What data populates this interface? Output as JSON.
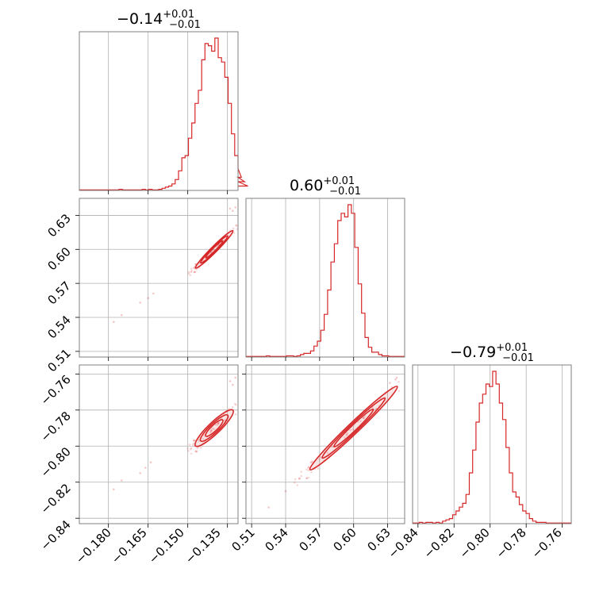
{
  "colors": {
    "series": "#d62728",
    "grid": "#b0b0b0",
    "frame": "#808080"
  },
  "chart_data": [
    {
      "type": "histogram",
      "panel": "diag-0",
      "title": {
        "value": "−0.14",
        "upper": "+0.01",
        "lower": "−0.01"
      },
      "xlim": [
        -0.191,
        -0.131
      ],
      "grid_x": [
        -0.18,
        -0.165,
        -0.15,
        -0.135
      ],
      "bin_edges_start": -0.191,
      "bin_width": 0.00125,
      "counts": [
        0.5,
        0.5,
        0.5,
        0.5,
        0.5,
        0.5,
        0.5,
        0.5,
        0.5,
        0.5,
        0.5,
        0.5,
        1,
        0.5,
        0.5,
        0.5,
        0.5,
        0.5,
        0.5,
        1,
        0.5,
        1,
        0.5,
        0.5,
        1,
        2,
        3,
        4,
        6,
        10,
        18,
        30,
        32,
        48,
        62,
        80,
        92,
        120,
        135,
        133,
        128,
        140,
        122,
        118,
        104,
        80,
        52,
        32,
        20,
        12,
        8,
        4
      ]
    },
    {
      "type": "histogram",
      "panel": "diag-1",
      "title": {
        "value": "0.60",
        "upper": "+0.01",
        "lower": "−0.01"
      },
      "xlim": [
        0.505,
        0.645
      ],
      "grid_x": [
        0.51,
        0.54,
        0.57,
        0.6,
        0.63
      ],
      "bin_edges_start": 0.505,
      "bin_width": 0.003,
      "counts": [
        0.5,
        0.5,
        0.5,
        0.5,
        0.5,
        0.5,
        1,
        0.5,
        0.5,
        0.5,
        0.5,
        0.5,
        1,
        1,
        0.5,
        1,
        2,
        3,
        3,
        5,
        9,
        13,
        22,
        35,
        55,
        78,
        93,
        112,
        118,
        115,
        125,
        118,
        90,
        60,
        36,
        16,
        8,
        4,
        4,
        2,
        1,
        1,
        0.5,
        0.5,
        0.5,
        0.5,
        0.5
      ]
    },
    {
      "type": "histogram",
      "panel": "diag-2",
      "title": {
        "value": "−0.79",
        "upper": "+0.01",
        "lower": "−0.01"
      },
      "xlim": [
        -0.843,
        -0.755
      ],
      "grid_x": [
        -0.84,
        -0.82,
        -0.8,
        -0.78,
        -0.76
      ],
      "bin_edges_start": -0.843,
      "bin_width": 0.00185,
      "counts": [
        0.5,
        0.5,
        1,
        0.5,
        1,
        1,
        0.5,
        1,
        0.5,
        2,
        3,
        4,
        7,
        10,
        13,
        16,
        23,
        40,
        58,
        80,
        95,
        102,
        110,
        108,
        120,
        110,
        95,
        82,
        60,
        40,
        25,
        21,
        15,
        10,
        8,
        4,
        2,
        1,
        1,
        1,
        0.5,
        0.5,
        0.5,
        0.5,
        0.5,
        0.5,
        0.5,
        0.5
      ]
    },
    {
      "type": "scatter",
      "panel": "p1-vs-p0",
      "xlim": [
        -0.191,
        -0.131
      ],
      "ylim": [
        0.505,
        0.645
      ],
      "grid_x": [
        -0.18,
        -0.165,
        -0.15,
        -0.135
      ],
      "grid_y": [
        0.51,
        0.54,
        0.57,
        0.6,
        0.63
      ],
      "center": [
        -0.14,
        0.6
      ],
      "direction": [
        0.4286,
        1
      ],
      "half_extents": [
        0.0165,
        0.00095
      ],
      "outliers": [
        [
          -0.175,
          0.542
        ],
        [
          -0.168,
          0.553
        ],
        [
          -0.165,
          0.557
        ],
        [
          -0.163,
          0.561
        ],
        [
          -0.178,
          0.536
        ],
        [
          -0.134,
          0.636
        ],
        [
          -0.132,
          0.637
        ],
        [
          -0.133,
          0.634
        ]
      ]
    },
    {
      "type": "scatter",
      "panel": "p2-vs-p0",
      "xlim": [
        -0.191,
        -0.131
      ],
      "ylim": [
        -0.843,
        -0.755
      ],
      "grid_x": [
        -0.18,
        -0.165,
        -0.15,
        -0.135
      ],
      "grid_y": [
        -0.84,
        -0.82,
        -0.8,
        -0.78,
        -0.76
      ],
      "center": [
        -0.14,
        -0.79
      ],
      "direction": [
        0.4286,
        0.6
      ],
      "half_extents": [
        0.0165,
        0.0012
      ],
      "outliers": [
        [
          -0.175,
          -0.819
        ],
        [
          -0.168,
          -0.815
        ],
        [
          -0.166,
          -0.812
        ],
        [
          -0.164,
          -0.809
        ],
        [
          -0.178,
          -0.824
        ],
        [
          -0.134,
          -0.764
        ],
        [
          -0.132,
          -0.762
        ],
        [
          -0.133,
          -0.766
        ]
      ]
    },
    {
      "type": "scatter",
      "panel": "p2-vs-p1",
      "xlim": [
        0.505,
        0.645
      ],
      "ylim": [
        -0.843,
        -0.755
      ],
      "grid_x": [
        0.51,
        0.54,
        0.57,
        0.6,
        0.63
      ],
      "grid_y": [
        -0.84,
        -0.82,
        -0.8,
        -0.78,
        -0.76
      ],
      "center": [
        0.6,
        -0.79
      ],
      "direction": [
        1,
        0.6
      ],
      "half_extents": [
        0.0385,
        0.0011
      ],
      "outliers": [
        [
          0.525,
          -0.834
        ],
        [
          0.54,
          -0.825
        ],
        [
          0.552,
          -0.818
        ],
        [
          0.56,
          -0.812
        ],
        [
          0.637,
          -0.763
        ],
        [
          0.632,
          -0.765
        ],
        [
          0.638,
          -0.762
        ]
      ]
    }
  ],
  "axes": {
    "x0_ticks": [
      "−0.180",
      "−0.165",
      "−0.150",
      "−0.135"
    ],
    "x1_ticks": [
      "0.51",
      "0.54",
      "0.57",
      "0.60",
      "0.63"
    ],
    "x2_ticks": [
      "−0.84",
      "−0.82",
      "−0.80",
      "−0.78",
      "−0.76"
    ],
    "y1_ticks": [
      "0.51",
      "0.54",
      "0.57",
      "0.60",
      "0.63"
    ],
    "y2_ticks": [
      "−0.84",
      "−0.82",
      "−0.80",
      "−0.78",
      "−0.76"
    ]
  }
}
